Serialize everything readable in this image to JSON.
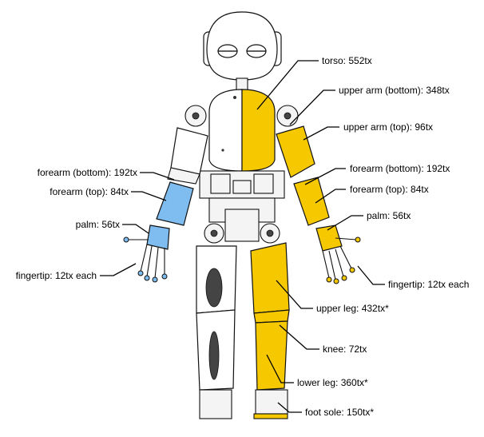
{
  "colors": {
    "covered_right": "#f5c800",
    "covered_left": "#7fbcf0",
    "outline": "#111111",
    "background": "#ffffff"
  },
  "labels": {
    "torso": "torso: 552tx",
    "upper_arm_bottom": "upper arm (bottom): 348tx",
    "upper_arm_top": "upper arm (top): 96tx",
    "forearm_bottom_right": "forearm (bottom): 192tx",
    "forearm_top_right": "forearm (top): 84tx",
    "palm_right": "palm: 56tx",
    "fingertip_right": "fingertip: 12tx each",
    "upper_leg": "upper leg: 432tx*",
    "knee": "knee: 72tx",
    "lower_leg": "lower leg: 360tx*",
    "foot_sole": "foot sole: 150tx*",
    "forearm_bottom_left": "forearm (bottom): 192tx",
    "forearm_top_left": "forearm (top): 84tx",
    "palm_left": "palm: 56tx",
    "fingertip_left": "fingertip: 12tx each"
  }
}
